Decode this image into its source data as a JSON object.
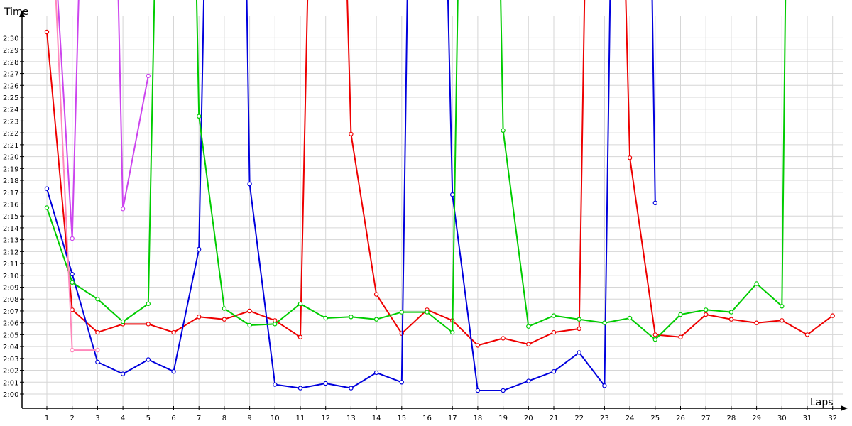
{
  "chart_data": {
    "type": "line",
    "title": "",
    "xlabel": "Laps",
    "ylabel": "Time",
    "grid": true,
    "legend": "none",
    "xlim": [
      0,
      32.5
    ],
    "ylim_seconds": [
      7198,
      7840
    ],
    "x_ticks": [
      "1",
      "2",
      "3",
      "4",
      "5",
      "6",
      "7",
      "8",
      "9",
      "10",
      "11",
      "12",
      "13",
      "14",
      "15",
      "16",
      "17",
      "18",
      "19",
      "20",
      "21",
      "22",
      "23",
      "24",
      "25",
      "26",
      "27",
      "28",
      "29",
      "30",
      "31",
      "32"
    ],
    "y_ticks": [
      "2:00",
      "2:01",
      "2:02",
      "2:03",
      "2:04",
      "2:05",
      "2:06",
      "2:07",
      "2:08",
      "2:09",
      "2:10",
      "2:11",
      "2:12",
      "2:13",
      "2:14",
      "2:15",
      "2:16",
      "2:17",
      "2:18",
      "2:19",
      "2:20",
      "2:21",
      "2:22",
      "2:23",
      "2:24",
      "2:25",
      "2:26",
      "2:27",
      "2:28",
      "2:29",
      "2:30"
    ],
    "y_ticks_seconds": [
      7200,
      7201,
      7202,
      7203,
      7204,
      7205,
      7206,
      7207,
      7208,
      7209,
      7210,
      7211,
      7212,
      7213,
      7214,
      7215,
      7216,
      7217,
      7218,
      7219,
      7220,
      7221,
      7222,
      7223,
      7224,
      7225,
      7226,
      7227,
      7228,
      7229,
      7230
    ],
    "series": [
      {
        "color": "#ee0000",
        "points": [
          [
            1,
            7230.5
          ],
          [
            2,
            7207.1
          ],
          [
            3,
            7205.2
          ],
          [
            4,
            7205.9
          ],
          [
            5,
            7205.9
          ],
          [
            6,
            7205.2
          ],
          [
            7,
            7206.5
          ],
          [
            8,
            7206.3
          ],
          [
            9,
            7207.0
          ],
          [
            10,
            7206.2
          ],
          [
            11,
            7204.8
          ],
          [
            11.4,
            7245
          ],
          [
            12.7,
            7245
          ],
          [
            13,
            7221.9
          ],
          [
            14,
            7208.4
          ],
          [
            15,
            7205.1
          ],
          [
            16,
            7207.1
          ],
          [
            17,
            7206.2
          ],
          [
            18,
            7204.1
          ],
          [
            19,
            7204.7
          ],
          [
            20,
            7204.2
          ],
          [
            21,
            7205.2
          ],
          [
            22,
            7205.5
          ],
          [
            22.3,
            7245
          ],
          [
            23.7,
            7245
          ],
          [
            24,
            7219.9
          ],
          [
            25,
            7205.0
          ],
          [
            26,
            7204.8
          ],
          [
            27,
            7206.7
          ],
          [
            28,
            7206.3
          ],
          [
            29,
            7206.0
          ],
          [
            30,
            7206.2
          ],
          [
            31,
            7205.0
          ],
          [
            32,
            7206.6
          ]
        ]
      },
      {
        "color": "#0000dd",
        "points": [
          [
            1,
            7217.3
          ],
          [
            2,
            7210.1
          ],
          [
            3,
            7202.7
          ],
          [
            4,
            7201.7
          ],
          [
            5,
            7202.9
          ],
          [
            6,
            7201.9
          ],
          [
            7,
            7212.2
          ],
          [
            7.3,
            7245
          ],
          [
            8.8,
            7245
          ],
          [
            9,
            7217.7
          ],
          [
            10,
            7200.8
          ],
          [
            11,
            7200.5
          ],
          [
            12,
            7200.9
          ],
          [
            13,
            7200.5
          ],
          [
            14,
            7201.8
          ],
          [
            15,
            7201.0
          ],
          [
            15.3,
            7245
          ],
          [
            16.7,
            7245
          ],
          [
            17,
            7216.8
          ],
          [
            18,
            7200.3
          ],
          [
            19,
            7200.3
          ],
          [
            20,
            7201.1
          ],
          [
            21,
            7201.9
          ],
          [
            22,
            7203.5
          ],
          [
            23,
            7200.7
          ],
          [
            23.3,
            7245
          ],
          [
            24.8,
            7245
          ],
          [
            25,
            7216.1
          ]
        ]
      },
      {
        "color": "#00cc00",
        "points": [
          [
            1,
            7215.7
          ],
          [
            2,
            7209.4
          ],
          [
            3,
            7208.0
          ],
          [
            4,
            7206.1
          ],
          [
            5,
            7207.6
          ],
          [
            5.35,
            7245
          ],
          [
            6.8,
            7245
          ],
          [
            7,
            7223.4
          ],
          [
            8,
            7207.2
          ],
          [
            9,
            7205.8
          ],
          [
            10,
            7205.9
          ],
          [
            11,
            7207.6
          ],
          [
            12,
            7206.4
          ],
          [
            13,
            7206.5
          ],
          [
            14,
            7206.3
          ],
          [
            15,
            7206.9
          ],
          [
            16,
            7206.9
          ],
          [
            17,
            7205.2
          ],
          [
            17.3,
            7245
          ],
          [
            18.8,
            7245
          ],
          [
            19,
            7222.2
          ],
          [
            20,
            7205.7
          ],
          [
            21,
            7206.6
          ],
          [
            22,
            7206.3
          ],
          [
            23,
            7206.0
          ],
          [
            24,
            7206.4
          ],
          [
            25,
            7204.6
          ],
          [
            26,
            7206.7
          ],
          [
            27,
            7207.1
          ],
          [
            28,
            7206.9
          ],
          [
            29,
            7209.3
          ],
          [
            30,
            7207.4
          ],
          [
            30.2,
            7245
          ]
        ]
      },
      {
        "color": "#cc44ee",
        "points": [
          [
            1.1,
            7245
          ],
          [
            2,
            7213.1
          ],
          [
            2.4,
            7245
          ],
          [
            3.7,
            7245
          ],
          [
            4,
            7215.6
          ],
          [
            5,
            7226.8
          ]
        ]
      },
      {
        "color": "#ff88bb",
        "points": [
          [
            1.1,
            7245
          ],
          [
            2,
            7203.7
          ],
          [
            3,
            7203.7
          ]
        ]
      }
    ]
  }
}
